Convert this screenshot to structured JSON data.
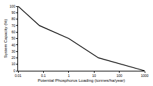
{
  "chart_data": {
    "type": "line",
    "x_label": "Potential Phosphorus Loading (tonnes/ha/year)",
    "y_label": "System Capacity (%)",
    "x": [
      0.01,
      0.07,
      1,
      15,
      1000
    ],
    "values": [
      100,
      70,
      50,
      20,
      0
    ],
    "color": "#000000",
    "log": "x",
    "grid": false,
    "xlim": [
      0.01,
      1000
    ],
    "xticks": [
      0.01,
      0.1,
      1,
      10,
      100,
      1000
    ],
    "ylim": [
      0,
      100
    ],
    "yticks": [
      0,
      10,
      20,
      30,
      40,
      50,
      60,
      70,
      80,
      90,
      100
    ]
  }
}
